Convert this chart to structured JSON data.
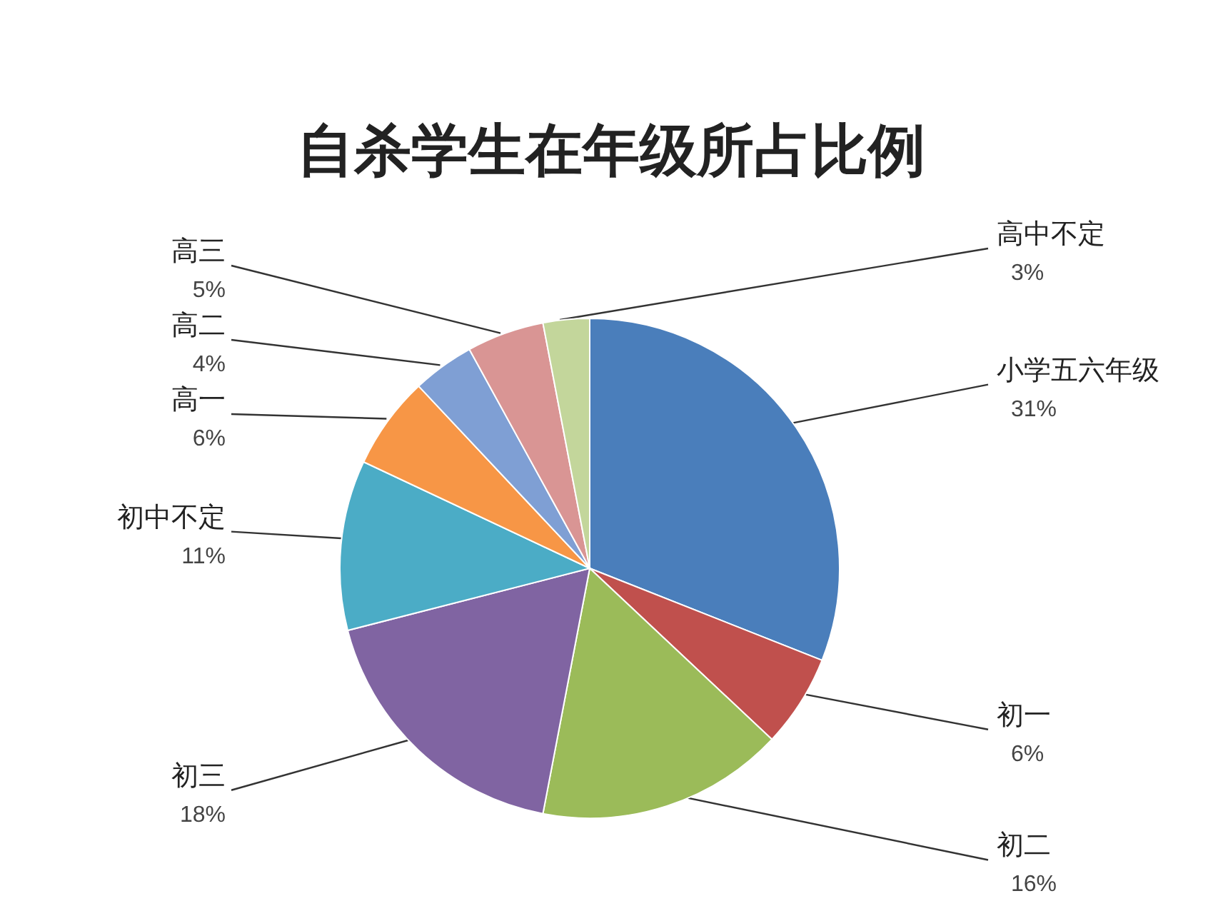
{
  "chart_data": {
    "type": "pie",
    "title": "自杀学生在年级所占比例",
    "categories": [
      "小学五六年级",
      "初一",
      "初二",
      "初三",
      "初中不定",
      "高一",
      "高二",
      "高三",
      "高中不定"
    ],
    "values": [
      31,
      6,
      16,
      18,
      11,
      6,
      4,
      5,
      3
    ],
    "value_labels": [
      "31%",
      "6%",
      "16%",
      "18%",
      "11%",
      "6%",
      "4%",
      "5%",
      "3%"
    ],
    "colors": [
      "#4a7ebb",
      "#c0504d",
      "#9bbb59",
      "#8064a2",
      "#4bacc6",
      "#f79646",
      "#7f9fd4",
      "#d99594",
      "#c3d69b"
    ]
  }
}
